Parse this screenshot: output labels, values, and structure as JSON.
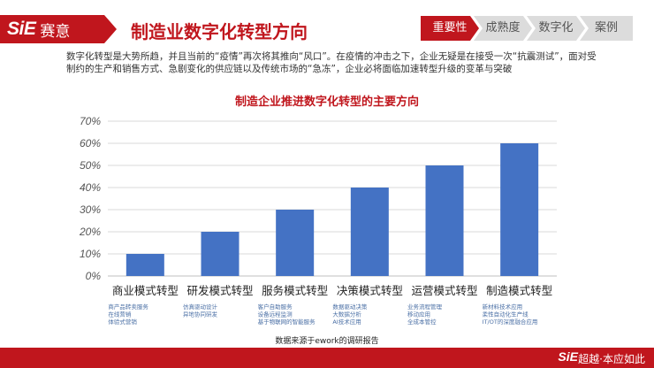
{
  "header": {
    "logo_text": "SiE",
    "logo_cn": "赛意",
    "title": "制造业数字化转型方向"
  },
  "breadcrumb": [
    "重要性",
    "成熟度",
    "数字化",
    "案例"
  ],
  "intro": "数字化转型是大势所趋，并且当前的“疫情”再次将其推向“风口”。在疫情的冲击之下，企业无疑是在接受一次“抗震测试”，面对受制约的生产和销售方式、急剧变化的供应链以及传统市场的“急冻”，企业必将面临加速转型升级的变革与突破",
  "chart_data": {
    "type": "bar",
    "title": "制造企业推进数字化转型的主要方向",
    "categories": [
      "商业模式转型",
      "研发模式转型",
      "服务模式转型",
      "决策模式转型",
      "运营模式转型",
      "制造模式转型"
    ],
    "values": [
      10,
      20,
      30,
      40,
      50,
      60
    ],
    "ylim": [
      0,
      70
    ],
    "yticks": [
      "0%",
      "10%",
      "20%",
      "30%",
      "40%",
      "50%",
      "60%",
      "70%"
    ],
    "grid": true,
    "bar_color": "#4472c4",
    "sub_labels": [
      [
        "商产品转卖服务",
        "在线营销",
        "体验式营销"
      ],
      [
        "仿真驱动设计",
        "异地协同研发"
      ],
      [
        "客户自助服务",
        "设备远程监测",
        "基于物联网的智能服务"
      ],
      [
        "数据驱动决策",
        "大数据分析",
        "AI技术应用"
      ],
      [
        "业务流程管理",
        "移动应用",
        "全成本管控"
      ],
      [
        "新材料技术应用",
        "柔性自动化生产线",
        "IT/OT的深度融合应用"
      ]
    ]
  },
  "note": "数据来源于ework的调研报告",
  "footer": {
    "logo_text": "SiE",
    "slogan": "超越·本应如此"
  },
  "colors": {
    "brand_red": "#c0161d",
    "bar_blue": "#4472c4",
    "crumb_grey": "#dcdcdc"
  }
}
